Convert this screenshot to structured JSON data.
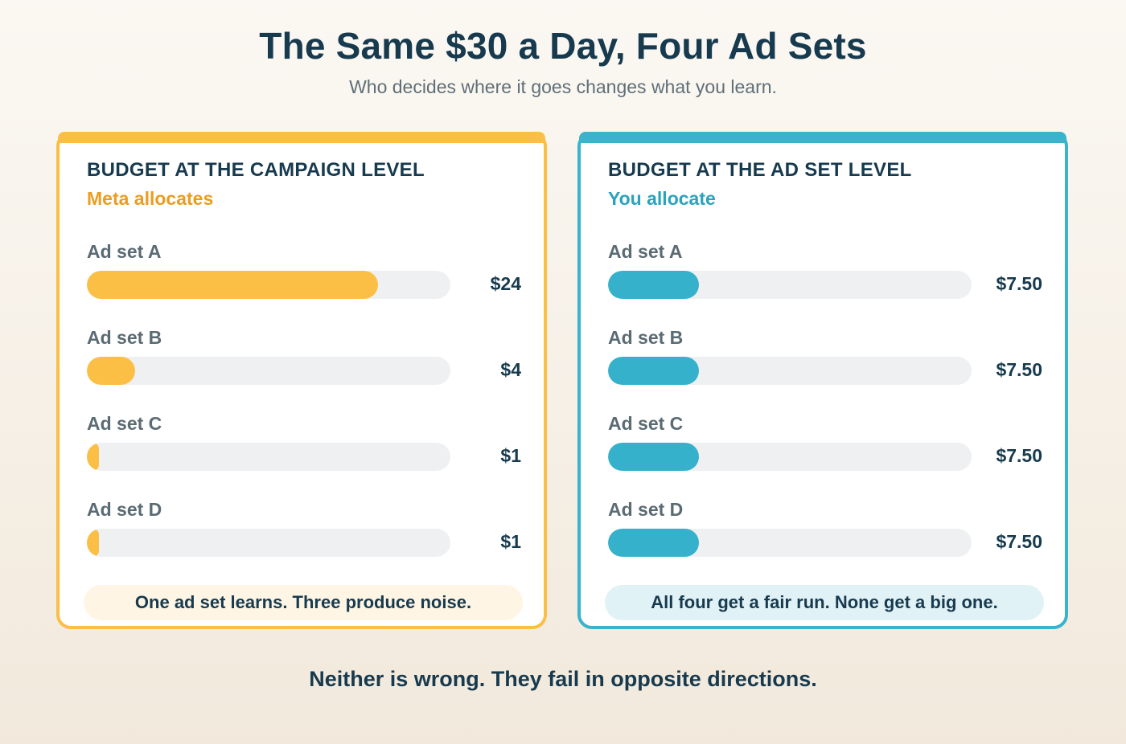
{
  "title": "The Same $30 a Day, Four Ad Sets",
  "subtitle": "Who decides where it goes changes what you learn.",
  "footer": "Neither is wrong. They fail in opposite directions.",
  "colors": {
    "campaign_accent": "#fcbf45",
    "adset_accent": "#35b1cc",
    "text_dark": "#173a4e",
    "text_muted": "#5b6b74"
  },
  "chart_data": [
    {
      "type": "bar",
      "orientation": "horizontal",
      "title": "BUDGET AT THE CAMPAIGN LEVEL",
      "subtitle": "Meta allocates",
      "categories": [
        "Ad set A",
        "Ad set B",
        "Ad set C",
        "Ad set D"
      ],
      "values": [
        24,
        4,
        1,
        1
      ],
      "value_labels": [
        "$24",
        "$4",
        "$1",
        "$1"
      ],
      "xlim": [
        0,
        30
      ],
      "note": "One ad set learns. Three produce noise.",
      "color": "#fcbf45"
    },
    {
      "type": "bar",
      "orientation": "horizontal",
      "title": "BUDGET AT THE AD SET LEVEL",
      "subtitle": "You allocate",
      "categories": [
        "Ad set A",
        "Ad set B",
        "Ad set C",
        "Ad set D"
      ],
      "values": [
        7.5,
        7.5,
        7.5,
        7.5
      ],
      "value_labels": [
        "$7.50",
        "$7.50",
        "$7.50",
        "$7.50"
      ],
      "xlim": [
        0,
        30
      ],
      "note": "All four get a fair run. None get a big one.",
      "color": "#35b1cc"
    }
  ]
}
